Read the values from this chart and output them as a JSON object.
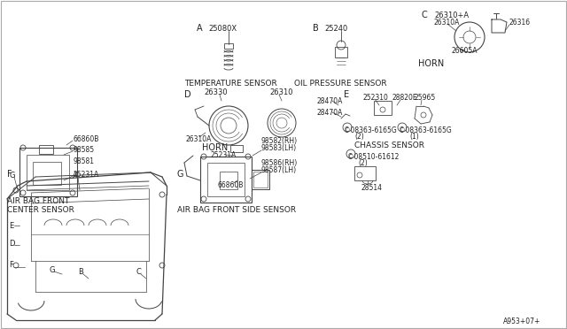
{
  "bg_color": "#ffffff",
  "text_color": "#222222",
  "line_color": "#444444",
  "border_color": "#aaaaaa",
  "diagram_code": "A953+07+",
  "labels": {
    "A_part": "25080X",
    "B_part": "25240",
    "C_label": "C",
    "C_parts": [
      "26310+A",
      "26310A",
      "26316",
      "26605A"
    ],
    "C_desc": "HORN",
    "D_label": "D",
    "D_parts": [
      "26330",
      "26310A",
      "26310"
    ],
    "D_desc": "HORN",
    "E_label": "E",
    "E_parts": [
      "28470A",
      "252310",
      "28820E",
      "25965"
    ],
    "E_screw1": "08363-6165G",
    "E_screw1_n": "(2)",
    "E_screw2": "08363-6165G",
    "E_screw2_n": "(1)",
    "E_desc": "CHASSIS SENSOR",
    "E2_screw": "08510-61612",
    "E2_screw_n": "(2)",
    "E2_part": "28514",
    "F_label": "F",
    "F_parts": [
      "66860B",
      "98585",
      "98581",
      "25231A"
    ],
    "F_desc1": "AIR BAG FRONT",
    "F_desc2": "CENTER SENSOR",
    "G_label": "G",
    "G_parts1": [
      "98582(RH)",
      "98583(LH)"
    ],
    "G_part2": "25231A",
    "G_parts3": [
      "98586(RH)",
      "98587(LH)"
    ],
    "G_part4": "66860B",
    "G_desc": "AIR BAG FRONT SIDE SENSOR",
    "temp_desc": "TEMPERATURE SENSOR",
    "oil_desc": "OIL PRESSURE SENSOR"
  }
}
